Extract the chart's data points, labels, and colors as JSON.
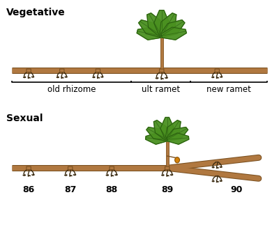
{
  "bg_color": "#ffffff",
  "rhizome_color": "#b07840",
  "rhizome_outline": "#7a5020",
  "leaf_color": "#4a9020",
  "leaf_outline": "#2a5e10",
  "fruit_color": "#d4820a",
  "root_color": "#3a2a10",
  "text_color": "#000000",
  "bracket_color": "#000000",
  "veg_title": "Vegetative",
  "sex_title": "Sexual",
  "labels_bottom": [
    "86",
    "87",
    "88",
    "89",
    "90"
  ],
  "old_rhizome_label": "old rhizome",
  "ult_ramet_label": "ult ramet",
  "new_ramet_label": "new ramet",
  "title_fontsize": 10,
  "label_fontsize": 8.5,
  "number_fontsize": 9
}
